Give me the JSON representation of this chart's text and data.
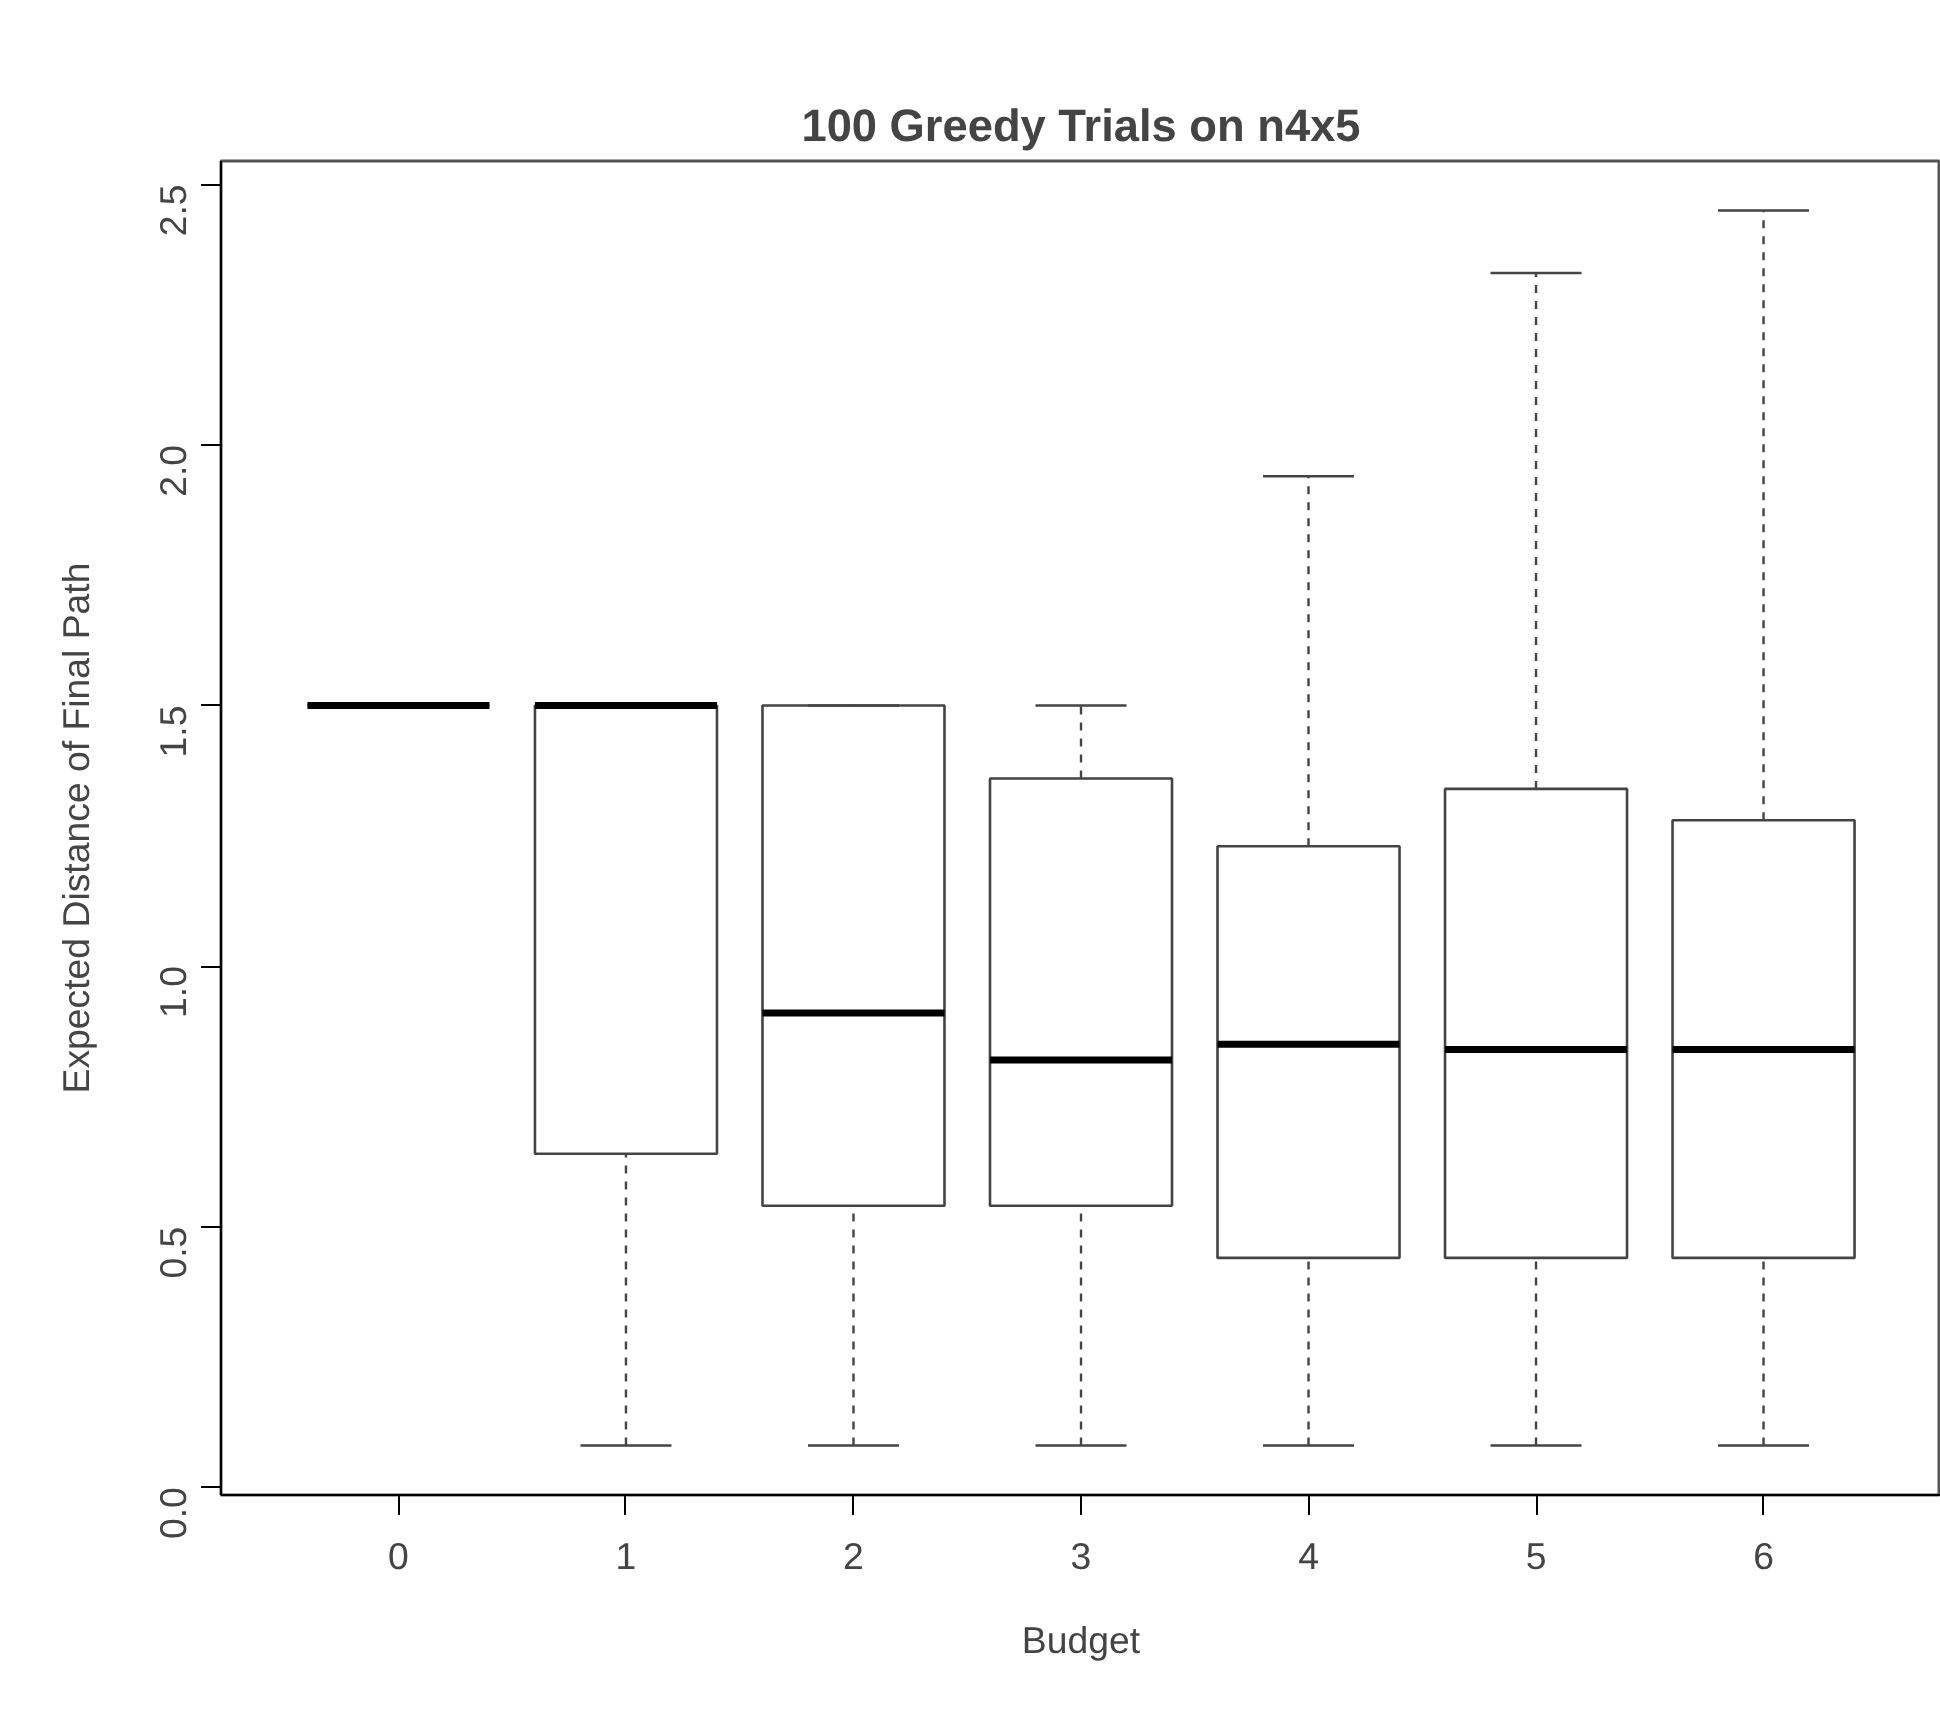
{
  "chart_data": {
    "type": "box",
    "title": "100 Greedy Trials on n4x5",
    "xlabel": "Budget",
    "ylabel": "Expected Distance of Final Path",
    "categories": [
      "0",
      "1",
      "2",
      "3",
      "4",
      "5",
      "6"
    ],
    "boxes": [
      {
        "low": 1.5,
        "q1": 1.5,
        "median": 1.5,
        "q3": 1.5,
        "high": 1.5
      },
      {
        "low": 0.08,
        "q1": 0.64,
        "median": 1.5,
        "q3": 1.5,
        "high": 1.5
      },
      {
        "low": 0.08,
        "q1": 0.54,
        "median": 0.91,
        "q3": 1.5,
        "high": 1.5
      },
      {
        "low": 0.08,
        "q1": 0.54,
        "median": 0.82,
        "q3": 1.36,
        "high": 1.5
      },
      {
        "low": 0.08,
        "q1": 0.44,
        "median": 0.85,
        "q3": 1.23,
        "high": 1.94
      },
      {
        "low": 0.08,
        "q1": 0.44,
        "median": 0.84,
        "q3": 1.34,
        "high": 2.33
      },
      {
        "low": 0.08,
        "q1": 0.44,
        "median": 0.84,
        "q3": 1.28,
        "high": 2.45
      }
    ],
    "ylim": [
      -0.015,
      2.545
    ],
    "yticks": [
      {
        "value": 0,
        "label": "0.0"
      },
      {
        "value": 0.5,
        "label": "0.5"
      },
      {
        "value": 1,
        "label": "1.0"
      },
      {
        "value": 1.5,
        "label": "1.5"
      },
      {
        "value": 2,
        "label": "2.0"
      },
      {
        "value": 2.5,
        "label": "2.5"
      }
    ],
    "grid": false
  }
}
